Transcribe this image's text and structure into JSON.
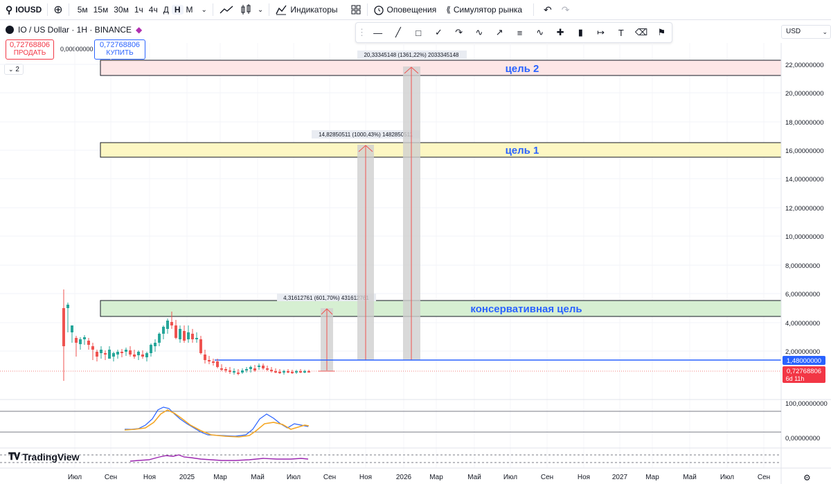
{
  "toolbar": {
    "symbol": "IOUSD",
    "timeframes": [
      "5м",
      "15м",
      "30м",
      "1ч",
      "4ч",
      "Д",
      "Н",
      "М"
    ],
    "active_timeframe": "Н",
    "indicators_label": "Индикаторы",
    "alerts_label": "Оповещения",
    "replay_label": "Симулятор рынка"
  },
  "drawing_tools": [
    "horizontal-line-icon",
    "trend-line-icon",
    "rectangle-icon",
    "brush-icon",
    "arc-icon",
    "path-icon",
    "ray-icon",
    "fib-icon",
    "pattern-icon",
    "crosshair-icon",
    "candles-icon",
    "measure-icon",
    "text-icon",
    "eraser-icon",
    "flag-icon"
  ],
  "legend": {
    "title": "IO / US Dollar · 1H · BINANCE",
    "sell_price": "0,72768806",
    "sell_label": "ПРОДАТЬ",
    "spread": "0,00000000",
    "buy_price": "0,72768806",
    "buy_label": "КУПИТЬ",
    "collapsed_count": "2"
  },
  "currency": "USD",
  "price_axis": [
    "22,00000000",
    "20,00000000",
    "18,00000000",
    "16,00000000",
    "14,00000000",
    "12,00000000",
    "10,00000000",
    "8,00000000",
    "6,00000000",
    "4,00000000",
    "2,00000000"
  ],
  "price_tags": {
    "hline": "1,48000000",
    "last": "0,72768806",
    "countdown": "6d 11h"
  },
  "oscillator_axis": [
    "100,00000000",
    "0,00000000"
  ],
  "time_axis": [
    "Июл",
    "Сен",
    "Ноя",
    "2025",
    "Мар",
    "Май",
    "Июл",
    "Сен",
    "Ноя",
    "2026",
    "Мар",
    "Май",
    "Июл",
    "Сен",
    "Ноя",
    "2027",
    "Мар",
    "Май",
    "Июл",
    "Сен"
  ],
  "zones": [
    {
      "label": "цель 2",
      "color": "#fde2e2"
    },
    {
      "label": "цель 1",
      "color": "#fdf7c3"
    },
    {
      "label": "консервативная цель",
      "color": "#d6efd2"
    }
  ],
  "measures": [
    "4,31612761 (601,70%) 431612761",
    "14,82850511 (1000,43%) 1482850511",
    "20,33345148 (1361,22%) 2033345148"
  ],
  "branding": "TradingView",
  "colors": {
    "up": "#26a69a",
    "down": "#ef5350",
    "hline": "#2962ff",
    "label_blue": "#2962ff",
    "osc_blue": "#2962ff",
    "osc_orange": "#f5a623",
    "purple": "#9c27b0"
  }
}
